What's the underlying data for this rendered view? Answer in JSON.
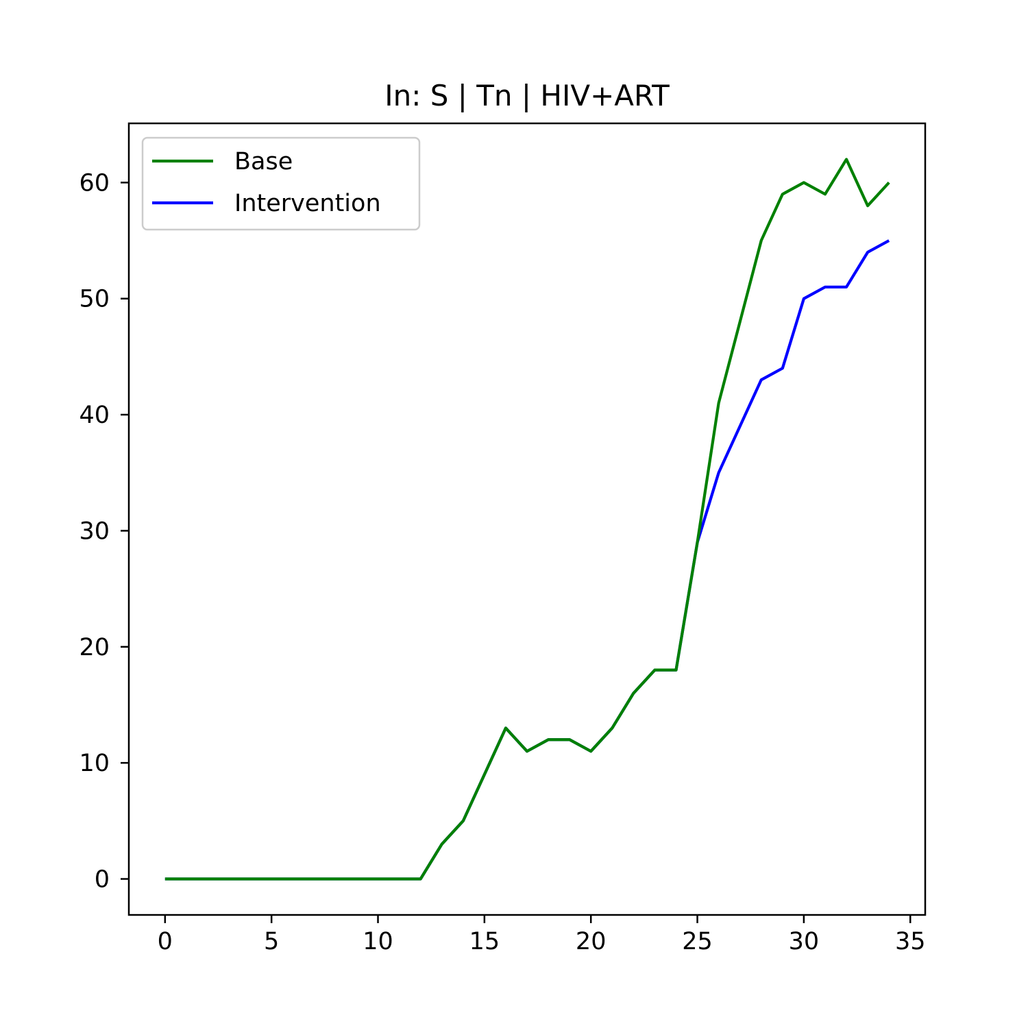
{
  "chart_data": {
    "type": "line",
    "title": "In: S | Tn | HIV+ART",
    "xlabel": "",
    "ylabel": "",
    "xlim": [
      -1.7,
      35.7
    ],
    "ylim": [
      -3.1,
      65.1
    ],
    "xticks": [
      0,
      5,
      10,
      15,
      20,
      25,
      30,
      35
    ],
    "yticks": [
      0,
      10,
      20,
      30,
      40,
      50,
      60
    ],
    "grid": false,
    "legend": "top-left",
    "x": [
      0,
      1,
      2,
      3,
      4,
      5,
      6,
      7,
      8,
      9,
      10,
      11,
      12,
      13,
      14,
      15,
      16,
      17,
      18,
      19,
      20,
      21,
      22,
      23,
      24,
      25,
      26,
      27,
      28,
      29,
      30,
      31,
      32,
      33,
      34
    ],
    "series": [
      {
        "name": "Base",
        "color": "#008000",
        "values": [
          0,
          0,
          0,
          0,
          0,
          0,
          0,
          0,
          0,
          0,
          0,
          0,
          0,
          3,
          5,
          9,
          13,
          11,
          12,
          12,
          11,
          13,
          16,
          18,
          18,
          29,
          41,
          48,
          55,
          59,
          60,
          59,
          62,
          58,
          60
        ]
      },
      {
        "name": "Intervention",
        "color": "#0000ff",
        "values": [
          0,
          0,
          0,
          0,
          0,
          0,
          0,
          0,
          0,
          0,
          0,
          0,
          0,
          3,
          5,
          9,
          13,
          11,
          12,
          12,
          11,
          13,
          16,
          18,
          18,
          29,
          35,
          39,
          43,
          44,
          50,
          51,
          51,
          54,
          55
        ]
      }
    ]
  }
}
